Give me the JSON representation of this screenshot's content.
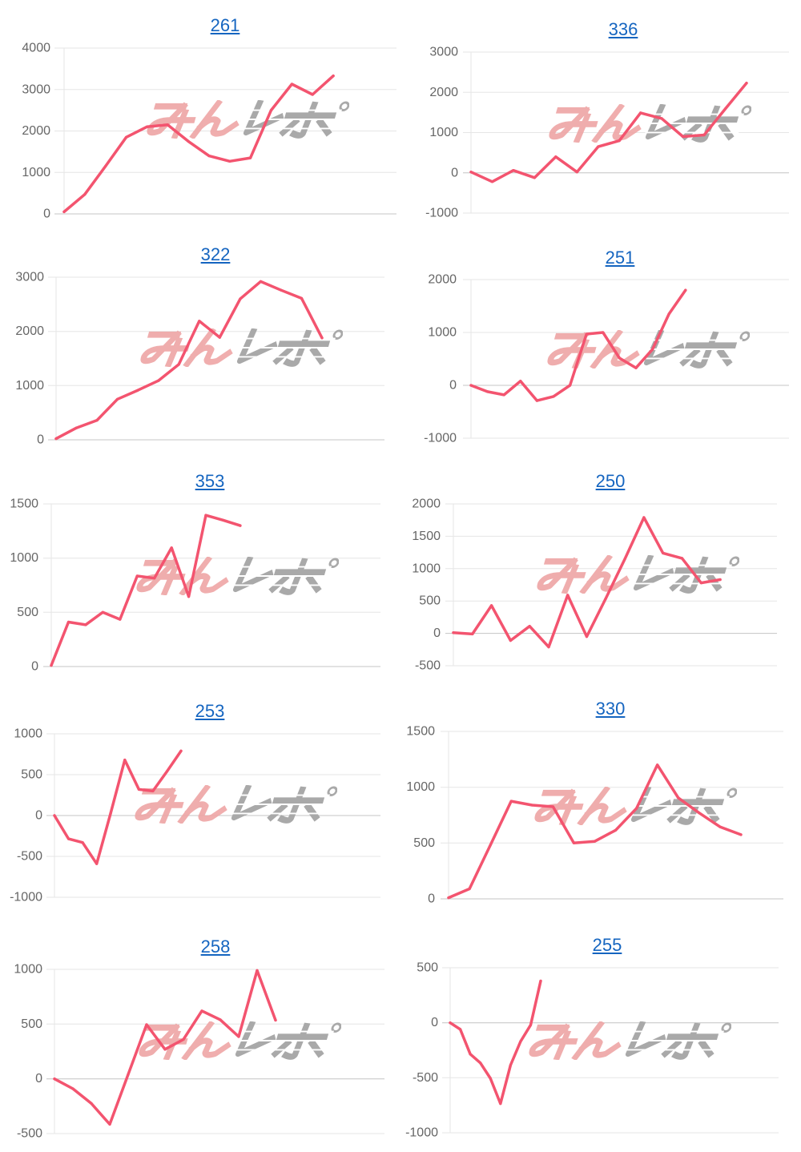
{
  "watermark": {
    "text": "みんレポ"
  },
  "colors": {
    "line": "#f3546f",
    "link": "#1565c0",
    "grid": "#e6e6e6",
    "zero_line": "#c4c4c4",
    "tick_label": "#666666",
    "watermark_pink": "#eea5a5",
    "watermark_gray": "#a9a9a9",
    "background": "#ffffff"
  },
  "chart_data": [
    {
      "type": "line",
      "title": "261",
      "ylim": [
        0,
        4000
      ],
      "yticks": [
        4000,
        3000,
        2000,
        1000,
        0
      ],
      "grid": true,
      "legend": "none",
      "series": [
        {
          "values": [
            50,
            470,
            1150,
            1850,
            2100,
            2150,
            1750,
            1400,
            1270,
            1350,
            2500,
            3130,
            2880,
            3330
          ]
        }
      ]
    },
    {
      "type": "line",
      "title": "336",
      "ylim": [
        -1000,
        3000
      ],
      "yticks": [
        3000,
        2000,
        1000,
        0,
        -1000
      ],
      "grid": true,
      "legend": "none",
      "series": [
        {
          "values": [
            20,
            -220,
            60,
            -120,
            400,
            20,
            650,
            800,
            1490,
            1350,
            900,
            940,
            1590,
            2230
          ]
        }
      ]
    },
    {
      "type": "line",
      "title": "322",
      "ylim": [
        0,
        3000
      ],
      "yticks": [
        3000,
        2000,
        1000,
        0
      ],
      "grid": true,
      "legend": "none",
      "series": [
        {
          "values": [
            20,
            220,
            360,
            750,
            915,
            1090,
            1390,
            2190,
            1890,
            2600,
            2920,
            2760,
            2610,
            1880
          ]
        }
      ]
    },
    {
      "type": "line",
      "title": "251",
      "ylim": [
        -1000,
        2000
      ],
      "yticks": [
        2000,
        1000,
        0,
        -1000
      ],
      "grid": true,
      "legend": "none",
      "series": [
        {
          "values": [
            0,
            -120,
            -180,
            80,
            -290,
            -210,
            0,
            970,
            1000,
            515,
            330,
            680,
            1350,
            1800
          ]
        }
      ]
    },
    {
      "type": "line",
      "title": "353",
      "ylim": [
        0,
        1500
      ],
      "yticks": [
        1500,
        1000,
        500,
        0
      ],
      "grid": true,
      "legend": "none",
      "series": [
        {
          "values": [
            10,
            410,
            385,
            500,
            435,
            835,
            815,
            1095,
            645,
            1395,
            1350,
            1300
          ]
        }
      ]
    },
    {
      "type": "line",
      "title": "250",
      "ylim": [
        -500,
        2000
      ],
      "yticks": [
        2000,
        1500,
        1000,
        500,
        0,
        -500
      ],
      "grid": true,
      "legend": "none",
      "series": [
        {
          "values": [
            10,
            -10,
            430,
            -110,
            110,
            -210,
            590,
            -50,
            540,
            1150,
            1790,
            1240,
            1160,
            780,
            830
          ]
        }
      ]
    },
    {
      "type": "line",
      "title": "253",
      "ylim": [
        -1000,
        1000
      ],
      "yticks": [
        1000,
        500,
        0,
        -500,
        -1000
      ],
      "grid": true,
      "legend": "none",
      "series": [
        {
          "values": [
            0,
            -285,
            -330,
            -590,
            30,
            680,
            320,
            300,
            540,
            790
          ]
        }
      ]
    },
    {
      "type": "line",
      "title": "330",
      "ylim": [
        0,
        1500
      ],
      "yticks": [
        1500,
        1000,
        500,
        0
      ],
      "grid": true,
      "legend": "none",
      "series": [
        {
          "values": [
            10,
            90,
            480,
            875,
            840,
            825,
            500,
            515,
            615,
            810,
            1200,
            905,
            770,
            645,
            575
          ]
        }
      ]
    },
    {
      "type": "line",
      "title": "258",
      "ylim": [
        -500,
        1000
      ],
      "yticks": [
        1000,
        500,
        0,
        -500
      ],
      "grid": true,
      "legend": "none",
      "series": [
        {
          "values": [
            0,
            -90,
            -225,
            -415,
            40,
            495,
            270,
            360,
            620,
            540,
            385,
            990,
            535
          ]
        }
      ]
    },
    {
      "type": "line",
      "title": "255",
      "ylim": [
        -1000,
        500
      ],
      "yticks": [
        500,
        0,
        -500,
        -1000
      ],
      "grid": true,
      "legend": "none",
      "series": [
        {
          "values": [
            0,
            -60,
            -285,
            -365,
            -505,
            -735,
            -385,
            -170,
            -20,
            380
          ]
        }
      ]
    }
  ]
}
